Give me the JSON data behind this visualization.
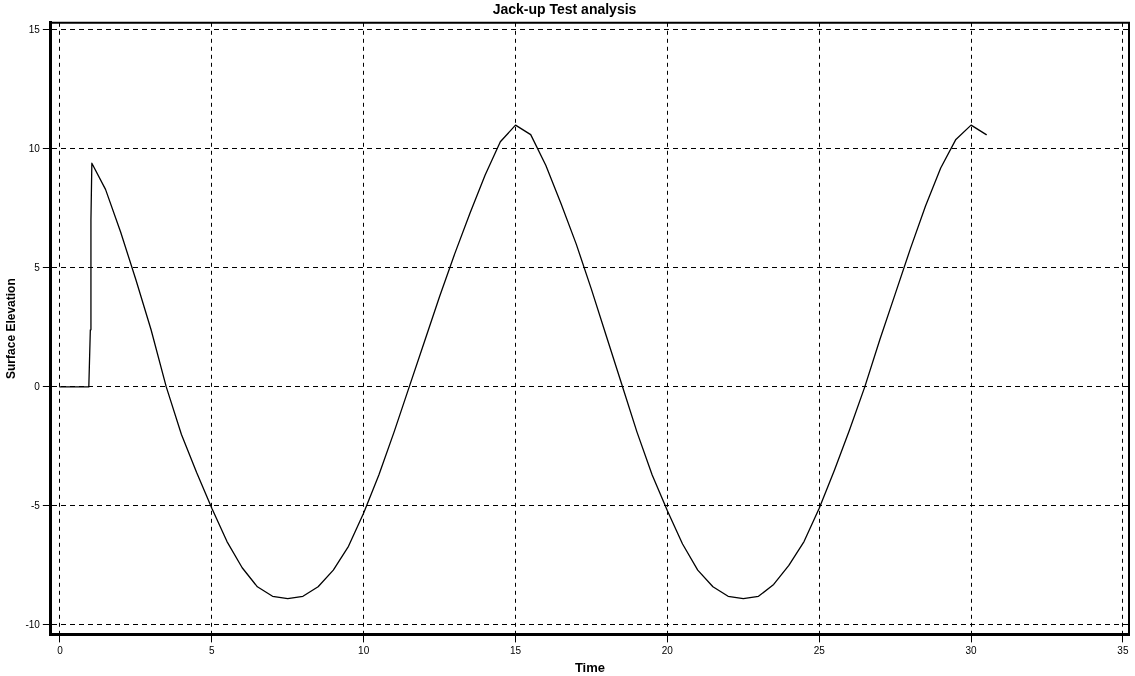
{
  "chart_data": {
    "type": "line",
    "title": "Jack-up Test analysis",
    "xlabel": "Time",
    "ylabel": "Surface Elevation",
    "xlim": [
      -0.3,
      35.2
    ],
    "ylim": [
      -10.4,
      15.3
    ],
    "xticks": [
      0,
      5,
      10,
      15,
      20,
      25,
      30,
      35
    ],
    "yticks": [
      -10,
      -5,
      0,
      5,
      10,
      15
    ],
    "grid": true,
    "legend": false,
    "marker": "none",
    "line_style": "solid",
    "series": [
      {
        "color": "#000000",
        "x": [
          0,
          0.95,
          1.0,
          1.02,
          1.05,
          1.5,
          2,
          2.5,
          3,
          3.5,
          4,
          4.5,
          5,
          5.5,
          6,
          6.5,
          7,
          7.5,
          8,
          8.5,
          9,
          9.5,
          10,
          10.5,
          11,
          11.5,
          12,
          12.5,
          13,
          13.5,
          14,
          14.5,
          15,
          15.5,
          16,
          16.5,
          17,
          17.5,
          18,
          18.5,
          19,
          19.5,
          20,
          20.5,
          21,
          21.5,
          22,
          22.5,
          23,
          23.5,
          24,
          24.5,
          25,
          25.5,
          26,
          26.5,
          27,
          27.5,
          28,
          28.5,
          29,
          29.5,
          30,
          30.5
        ],
        "values": [
          0,
          0,
          2.4,
          7,
          9.4,
          8.3,
          6.5,
          4.5,
          2.4,
          0,
          -2,
          -3.6,
          -5.1,
          -6.5,
          -7.6,
          -8.4,
          -8.8,
          -8.9,
          -8.8,
          -8.4,
          -7.7,
          -6.7,
          -5.3,
          -3.7,
          -1.9,
          0,
          1.9,
          3.8,
          5.6,
          7.3,
          8.9,
          10.3,
          11,
          10.6,
          9.3,
          7.7,
          6,
          4.1,
          2.1,
          0.1,
          -1.9,
          -3.7,
          -5.2,
          -6.6,
          -7.7,
          -8.4,
          -8.8,
          -8.9,
          -8.8,
          -8.3,
          -7.5,
          -6.5,
          -5.1,
          -3.5,
          -1.8,
          0,
          2,
          3.9,
          5.8,
          7.6,
          9.2,
          10.4,
          11,
          10.6
        ]
      }
    ]
  }
}
